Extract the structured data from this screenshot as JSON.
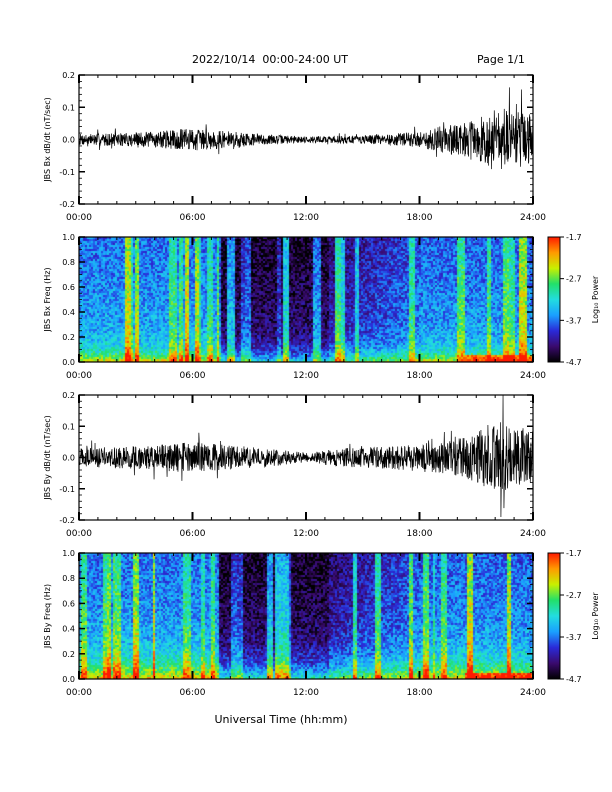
{
  "header": {
    "date_range": "2022/10/14  00:00-24:00 UT",
    "page": "Page 1/1"
  },
  "xaxis": {
    "label": "Universal Time (hh:mm)",
    "ticks": [
      "00:00",
      "06:00",
      "12:00",
      "18:00",
      "24:00"
    ],
    "range_hours": [
      0,
      24
    ]
  },
  "colors": {
    "trace": "#000000",
    "colormap": [
      "#000000",
      "#3a0a6e",
      "#2a2ad8",
      "#1aa0ff",
      "#22dde0",
      "#22e06a",
      "#c8f000",
      "#ff9a00",
      "#ff1a00"
    ]
  },
  "chart_data": [
    {
      "type": "line",
      "ylabel": "JBS Bx dB/dt (nT/sec)",
      "ylim": [
        -0.2,
        0.2
      ],
      "yticks": [
        "0.2",
        "0.1",
        "0.0",
        "-0.1",
        "-0.2"
      ],
      "ytick_values": [
        0.2,
        0.1,
        0.0,
        -0.1,
        -0.2
      ],
      "envelope": {
        "hours": [
          0,
          2,
          4,
          5,
          6,
          7,
          8,
          10,
          12,
          14,
          16,
          18,
          19,
          20,
          21,
          22,
          23,
          24
        ],
        "amplitude": [
          0.018,
          0.02,
          0.025,
          0.03,
          0.035,
          0.03,
          0.025,
          0.015,
          0.01,
          0.012,
          0.015,
          0.025,
          0.04,
          0.05,
          0.06,
          0.1,
          0.09,
          0.08
        ]
      }
    },
    {
      "type": "heatmap",
      "ylabel": "JBS Bx Freq (Hz)",
      "ylim": [
        0,
        1.0
      ],
      "yticks": [
        "1.0",
        "0.8",
        "0.6",
        "0.4",
        "0.2",
        "0.0"
      ],
      "ytick_values": [
        1.0,
        0.8,
        0.6,
        0.4,
        0.2,
        0.0
      ],
      "color_range": [
        -4.7,
        -1.7
      ],
      "colorbar": {
        "label": "Log₁₀ Power",
        "ticks": [
          "-1.7",
          "-2.7",
          "-3.7",
          "-4.7"
        ],
        "tick_values": [
          -1.7,
          -2.7,
          -3.7,
          -4.7
        ]
      }
    },
    {
      "type": "line",
      "ylabel": "JBS By dB/dt (nT/sec)",
      "ylim": [
        -0.2,
        0.2
      ],
      "yticks": [
        "0.2",
        "0.1",
        "0.0",
        "-0.1",
        "-0.2"
      ],
      "ytick_values": [
        0.2,
        0.1,
        0.0,
        -0.1,
        -0.2
      ],
      "envelope": {
        "hours": [
          0,
          2,
          4,
          5,
          6,
          7,
          8,
          10,
          12,
          14,
          16,
          18,
          19,
          20,
          21,
          22,
          23,
          24
        ],
        "amplitude": [
          0.03,
          0.035,
          0.04,
          0.045,
          0.05,
          0.045,
          0.04,
          0.03,
          0.015,
          0.03,
          0.035,
          0.045,
          0.05,
          0.06,
          0.08,
          0.12,
          0.1,
          0.09
        ]
      }
    },
    {
      "type": "heatmap",
      "ylabel": "JBS By Freq (Hz)",
      "ylim": [
        0,
        1.0
      ],
      "yticks": [
        "1.0",
        "0.8",
        "0.6",
        "0.4",
        "0.2",
        "0.0"
      ],
      "ytick_values": [
        1.0,
        0.8,
        0.6,
        0.4,
        0.2,
        0.0
      ],
      "color_range": [
        -4.7,
        -1.7
      ],
      "colorbar": {
        "label": "Log₁₀ Power",
        "ticks": [
          "-1.7",
          "-2.7",
          "-3.7",
          "-4.7"
        ],
        "tick_values": [
          -1.7,
          -2.7,
          -3.7,
          -4.7
        ]
      }
    }
  ]
}
